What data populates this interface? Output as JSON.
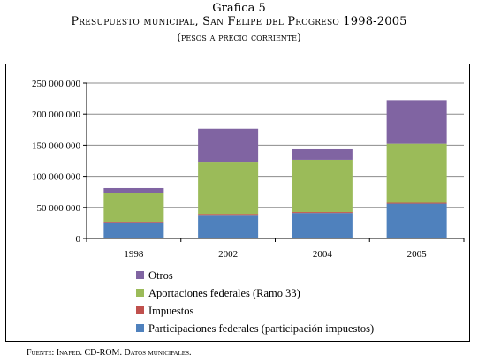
{
  "figure": {
    "caption_line1": "Grafica 5",
    "caption_line2": "Presupuesto municipal, San Felipe del Progreso 1998-2005",
    "caption_line3": "(pesos a precio corriente)",
    "source": "Fuente: Inafed. CD-ROM. Datos municipales."
  },
  "chart_data": {
    "type": "bar",
    "stacked": true,
    "title": "",
    "xlabel": "",
    "ylabel": "",
    "categories": [
      "1998",
      "2002",
      "2004",
      "2005"
    ],
    "ylim": [
      0,
      250000000
    ],
    "yticks": [
      0,
      50000000,
      100000000,
      150000000,
      200000000,
      250000000
    ],
    "ytick_labels": [
      "0",
      "50 000 000",
      "100 000 000",
      "150 000 000",
      "200 000 000",
      "250 000 000"
    ],
    "grid": true,
    "legend_placement": "bottom",
    "series": [
      {
        "name": "Participaciones federales (participación impuestos)",
        "color": "#4f81bd",
        "values": [
          26000000,
          38000000,
          41000000,
          56000000
        ]
      },
      {
        "name": "Impuestos",
        "color": "#c0504d",
        "values": [
          1000000,
          1500000,
          1500000,
          1500000
        ]
      },
      {
        "name": "Aportaciones federales (Ramo 33)",
        "color": "#9bbb59",
        "values": [
          46000000,
          84000000,
          84000000,
          95000000
        ]
      },
      {
        "name": "Otros",
        "color": "#8064a2",
        "values": [
          8000000,
          53000000,
          17000000,
          70000000
        ]
      }
    ]
  }
}
